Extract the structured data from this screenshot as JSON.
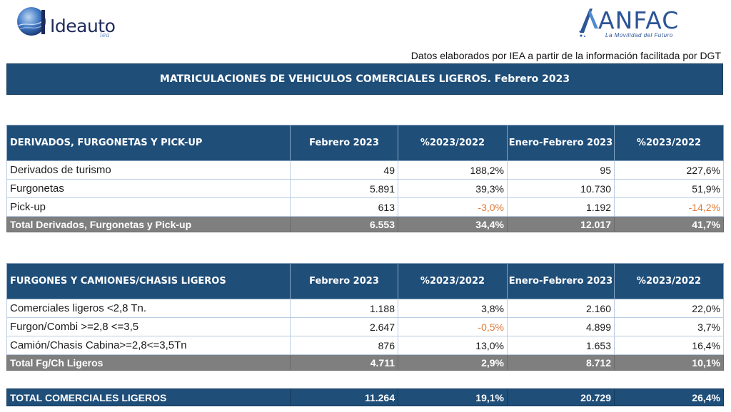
{
  "logos": {
    "ideauto": {
      "name": "Ideauto",
      "sub": "iea"
    },
    "anfac": {
      "name": "ANFAC",
      "sub": "La Movilidad del Futuro"
    }
  },
  "source_note": "Datos elaborados por IEA a partir de la información facilitada por DGT",
  "title": "MATRICULACIONES DE VEHICULOS COMERCIALES LIGEROS. Febrero 2023",
  "colors": {
    "header_bg": "#1f4e79",
    "total_bg": "#7f7f7f",
    "negative": "#e07b39"
  },
  "table1": {
    "headers": [
      "DERIVADOS, FURGONETAS Y PICK-UP",
      "Febrero 2023",
      "%2023/2022",
      "Enero-Febrero 2023",
      "%2023/2022"
    ],
    "rows": [
      {
        "label": "Derivados de turismo",
        "v1": "49",
        "p1": "188,2%",
        "v2": "95",
        "p2": "227,6%"
      },
      {
        "label": "Furgonetas",
        "v1": "5.891",
        "p1": "39,3%",
        "v2": "10.730",
        "p2": "51,9%"
      },
      {
        "label": "Pick-up",
        "v1": "613",
        "p1": "-3,0%",
        "v2": "1.192",
        "p2": "-14,2%"
      }
    ],
    "total": {
      "label": "Total Derivados, Furgonetas y Pick-up",
      "v1": "6.553",
      "p1": "34,4%",
      "v2": "12.017",
      "p2": "41,7%"
    }
  },
  "table2": {
    "headers": [
      "FURGONES Y CAMIONES/CHASIS LIGEROS",
      "Febrero 2023",
      "%2023/2022",
      "Enero-Febrero 2023",
      "%2023/2022"
    ],
    "rows": [
      {
        "label": "Comerciales ligeros <2,8 Tn.",
        "v1": "1.188",
        "p1": "3,8%",
        "v2": "2.160",
        "p2": "22,0%"
      },
      {
        "label": "Furgon/Combi >=2,8 <=3,5",
        "v1": "2.647",
        "p1": "-0,5%",
        "v2": "4.899",
        "p2": "3,7%"
      },
      {
        "label": "Camión/Chasis Cabina>=2,8<=3,5Tn",
        "v1": "876",
        "p1": "13,0%",
        "v2": "1.653",
        "p2": "16,4%"
      }
    ],
    "total": {
      "label": "Total Fg/Ch Ligeros",
      "v1": "4.711",
      "p1": "2,9%",
      "v2": "8.712",
      "p2": "10,1%"
    }
  },
  "grand_total": {
    "label": "TOTAL COMERCIALES LIGEROS",
    "v1": "11.264",
    "p1": "19,1%",
    "v2": "20.729",
    "p2": "26,4%"
  }
}
